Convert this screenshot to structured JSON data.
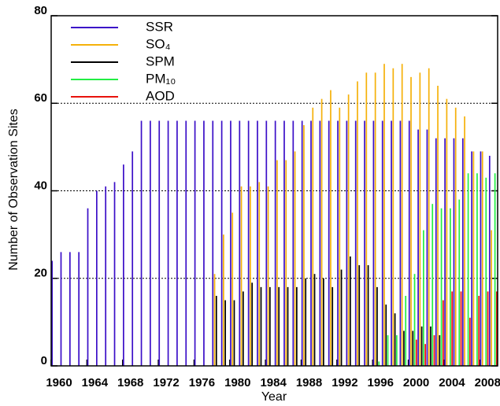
{
  "chart_data": {
    "type": "bar",
    "x_label": "Year",
    "y_label": "Number of Observation Sites",
    "x": [
      1960,
      1961,
      1962,
      1963,
      1964,
      1965,
      1966,
      1967,
      1968,
      1969,
      1970,
      1971,
      1972,
      1973,
      1974,
      1975,
      1976,
      1977,
      1978,
      1979,
      1980,
      1981,
      1982,
      1983,
      1984,
      1985,
      1986,
      1987,
      1988,
      1989,
      1990,
      1991,
      1992,
      1993,
      1994,
      1995,
      1996,
      1997,
      1998,
      1999,
      2000,
      2001,
      2002,
      2003,
      2004,
      2005,
      2006,
      2007,
      2008,
      2009
    ],
    "series": [
      {
        "name": "SSR",
        "color": "#3b0fc8",
        "values": [
          24,
          26,
          26,
          26,
          36,
          40,
          41,
          42,
          46,
          49,
          56,
          56,
          56,
          56,
          56,
          56,
          56,
          56,
          56,
          56,
          56,
          56,
          56,
          56,
          56,
          56,
          56,
          56,
          56,
          56,
          56,
          56,
          56,
          56,
          56,
          56,
          56,
          56,
          56,
          56,
          56,
          54,
          54,
          52,
          52,
          52,
          52,
          49,
          49,
          48
        ]
      },
      {
        "name": "SO₄",
        "color": "#f5b10a",
        "values": [
          null,
          null,
          null,
          null,
          null,
          null,
          null,
          null,
          null,
          null,
          null,
          null,
          null,
          null,
          null,
          null,
          null,
          null,
          21,
          30,
          35,
          41,
          41,
          42,
          41,
          47,
          47,
          49,
          55,
          59,
          61,
          63,
          59,
          62,
          65,
          67,
          67,
          69,
          68,
          69,
          66,
          67,
          68,
          64,
          61,
          59,
          57,
          49,
          49,
          31
        ]
      },
      {
        "name": "SPM",
        "color": "#000000",
        "values": [
          null,
          null,
          null,
          null,
          null,
          null,
          null,
          null,
          null,
          null,
          null,
          null,
          null,
          null,
          null,
          null,
          null,
          null,
          16,
          15,
          15,
          17,
          19,
          18,
          18,
          18,
          18,
          18,
          20,
          21,
          20,
          18,
          22,
          25,
          23,
          23,
          18,
          14,
          12,
          8,
          8,
          9,
          9,
          7,
          null,
          null,
          null,
          null,
          null,
          null
        ]
      },
      {
        "name": "PM₁₀",
        "color": "#22ee44",
        "values": [
          null,
          null,
          null,
          null,
          null,
          null,
          null,
          null,
          null,
          null,
          null,
          null,
          null,
          null,
          null,
          null,
          null,
          null,
          null,
          null,
          null,
          null,
          null,
          null,
          null,
          null,
          null,
          null,
          null,
          null,
          null,
          null,
          null,
          null,
          null,
          null,
          1,
          7,
          7,
          16,
          21,
          31,
          37,
          36,
          36,
          38,
          44,
          44,
          43,
          44
        ]
      },
      {
        "name": "AOD",
        "color": "#e8120c",
        "values": [
          null,
          null,
          null,
          null,
          null,
          null,
          null,
          null,
          null,
          null,
          null,
          null,
          null,
          null,
          null,
          null,
          null,
          null,
          null,
          null,
          null,
          null,
          null,
          null,
          null,
          null,
          null,
          null,
          null,
          null,
          null,
          null,
          null,
          null,
          null,
          null,
          null,
          null,
          null,
          null,
          6,
          5,
          7,
          15,
          17,
          17,
          11,
          16,
          17,
          17
        ]
      }
    ],
    "xlim": [
      1960,
      2010
    ],
    "xticks": [
      1960,
      1964,
      1968,
      1972,
      1976,
      1980,
      1984,
      1988,
      1992,
      1996,
      2000,
      2004,
      2008
    ],
    "ylim": [
      0,
      80
    ],
    "yticks": [
      0,
      20,
      40,
      60,
      80
    ],
    "grid": true,
    "legend": "upper left"
  }
}
